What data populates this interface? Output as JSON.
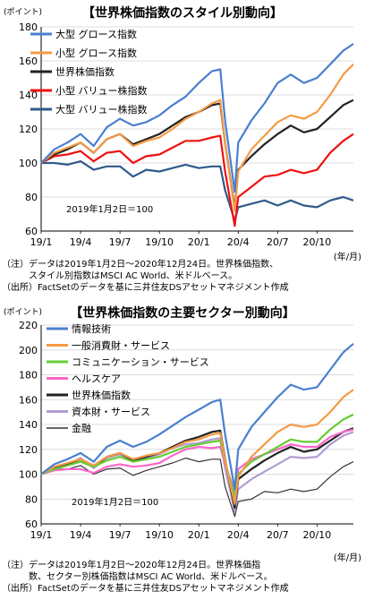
{
  "chart_data": [
    {
      "type": "line",
      "title": "【世界株価指数のスタイル別動向】",
      "unit": "(ポイント)",
      "ylim": [
        60,
        180
      ],
      "yticks": [
        60,
        80,
        100,
        120,
        140,
        160,
        180
      ],
      "xticks": [
        "19/1",
        "19/4",
        "19/7",
        "19/10",
        "20/1",
        "20/4",
        "20/7",
        "20/10"
      ],
      "x_unit": "(年/月)",
      "annotation": "2019年1月2日＝100",
      "grid": true,
      "legend_position": "top-left",
      "x": [
        "2019-01",
        "2019-02",
        "2019-03",
        "2019-04",
        "2019-05",
        "2019-06",
        "2019-07",
        "2019-08",
        "2019-09",
        "2019-10",
        "2019-11",
        "2019-12",
        "2020-01",
        "2020-02",
        "2020-02-20",
        "2020-03",
        "2020-03-23",
        "2020-04",
        "2020-05",
        "2020-06",
        "2020-07",
        "2020-08",
        "2020-09",
        "2020-10",
        "2020-11",
        "2020-12",
        "2020-12-24"
      ],
      "series": [
        {
          "name": "大型 グロース指数",
          "color": "#4a7fd0",
          "values": [
            100,
            108,
            112,
            117,
            110,
            121,
            126,
            122,
            124,
            128,
            134,
            139,
            147,
            154,
            155,
            125,
            83,
            112,
            125,
            135,
            147,
            152,
            147,
            150,
            158,
            166,
            170
          ]
        },
        {
          "name": "小型 グロース指数",
          "color": "#f59a45",
          "values": [
            100,
            106,
            109,
            112,
            106,
            114,
            117,
            110,
            113,
            115,
            120,
            126,
            130,
            135,
            137,
            112,
            72,
            95,
            108,
            116,
            124,
            128,
            126,
            130,
            140,
            152,
            158
          ]
        },
        {
          "name": "世界株価指数",
          "color": "#222222",
          "values": [
            100,
            105,
            108,
            112,
            106,
            114,
            117,
            111,
            114,
            117,
            122,
            127,
            130,
            134,
            135,
            112,
            73,
            96,
            104,
            111,
            117,
            122,
            118,
            120,
            127,
            134,
            137
          ]
        },
        {
          "name": "小型 バリュー株指数",
          "color": "#ee1111",
          "values": [
            100,
            104,
            105,
            107,
            101,
            106,
            107,
            100,
            104,
            105,
            109,
            113,
            113,
            115,
            116,
            95,
            63,
            80,
            86,
            92,
            93,
            96,
            94,
            96,
            106,
            113,
            117
          ]
        },
        {
          "name": "大型 バリュー株指数",
          "color": "#2e5b8c",
          "values": [
            100,
            100,
            99,
            101,
            96,
            98,
            98,
            92,
            96,
            95,
            97,
            99,
            97,
            98,
            98,
            84,
            66,
            74,
            76,
            78,
            75,
            78,
            75,
            74,
            78,
            80,
            78
          ]
        }
      ]
    },
    {
      "type": "line",
      "title": "【世界株価指数の主要セクター別動向】",
      "unit": "(ポイント)",
      "ylim": [
        60,
        220
      ],
      "yticks": [
        60,
        80,
        100,
        120,
        140,
        160,
        180,
        200,
        220
      ],
      "xticks": [
        "19/1",
        "19/4",
        "19/7",
        "19/10",
        "20/1",
        "20/4",
        "20/7",
        "20/10"
      ],
      "x_unit": "(年/月)",
      "annotation": "2019年1月2日＝100",
      "grid": true,
      "legend_position": "top-left",
      "x": [
        "2019-01",
        "2019-02",
        "2019-03",
        "2019-04",
        "2019-05",
        "2019-06",
        "2019-07",
        "2019-08",
        "2019-09",
        "2019-10",
        "2019-11",
        "2019-12",
        "2020-01",
        "2020-02",
        "2020-02-20",
        "2020-03",
        "2020-03-23",
        "2020-04",
        "2020-05",
        "2020-06",
        "2020-07",
        "2020-08",
        "2020-09",
        "2020-10",
        "2020-11",
        "2020-12",
        "2020-12-24"
      ],
      "series": [
        {
          "name": "情報技術",
          "color": "#4a7fd0",
          "values": [
            100,
            108,
            112,
            117,
            110,
            122,
            127,
            122,
            126,
            132,
            139,
            146,
            152,
            158,
            160,
            132,
            88,
            120,
            138,
            150,
            162,
            172,
            168,
            170,
            184,
            198,
            205
          ]
        },
        {
          "name": "一般消費財・サービス",
          "color": "#f59a45",
          "values": [
            100,
            106,
            109,
            112,
            107,
            114,
            117,
            112,
            115,
            117,
            121,
            126,
            128,
            132,
            133,
            111,
            76,
            98,
            114,
            124,
            134,
            140,
            138,
            140,
            150,
            162,
            168
          ]
        },
        {
          "name": "コミュニケーション・サービス",
          "color": "#66cc33",
          "values": [
            100,
            104,
            107,
            110,
            106,
            111,
            114,
            110,
            112,
            114,
            118,
            122,
            124,
            126,
            127,
            110,
            82,
            100,
            110,
            116,
            122,
            128,
            126,
            126,
            136,
            144,
            148
          ]
        },
        {
          "name": "ヘルスケア",
          "color": "#ff66cc",
          "values": [
            100,
            103,
            104,
            104,
            101,
            106,
            108,
            106,
            107,
            109,
            115,
            120,
            122,
            121,
            122,
            108,
            86,
            104,
            112,
            116,
            120,
            124,
            122,
            122,
            130,
            134,
            136
          ]
        },
        {
          "name": "世界株価指数",
          "color": "#222222",
          "values": [
            100,
            105,
            108,
            112,
            106,
            114,
            117,
            111,
            114,
            117,
            122,
            127,
            130,
            134,
            135,
            112,
            73,
            96,
            104,
            111,
            117,
            122,
            118,
            120,
            127,
            134,
            137
          ]
        },
        {
          "name": "資本財・サービス",
          "color": "#b09cd4",
          "values": [
            100,
            106,
            108,
            113,
            105,
            113,
            116,
            110,
            113,
            116,
            121,
            124,
            125,
            128,
            129,
            105,
            70,
            88,
            96,
            102,
            108,
            114,
            113,
            114,
            124,
            131,
            134
          ]
        },
        {
          "name": "金融",
          "color": "#333333",
          "values": [
            100,
            104,
            104,
            107,
            100,
            104,
            105,
            99,
            103,
            106,
            109,
            113,
            110,
            112,
            112,
            90,
            66,
            78,
            80,
            86,
            85,
            88,
            86,
            88,
            98,
            106,
            110
          ]
        }
      ]
    }
  ],
  "notes": [
    "（注）データは2019年1月2日～2020年12月24日。世界株価指数、\n　　　スタイル別指数はMSCI AC World、米ドルベース。\n（出所）FactSetのデータを基に三井住友DSアセットマネジメント作成",
    "（注）データは2019年1月2日～2020年12月24日。世界株価指\n　　　数、セクター別株価指数はMSCI AC World、米ドルベース。\n（出所）FactSetのデータを基に三井住友DSアセットマネジメント作成"
  ]
}
